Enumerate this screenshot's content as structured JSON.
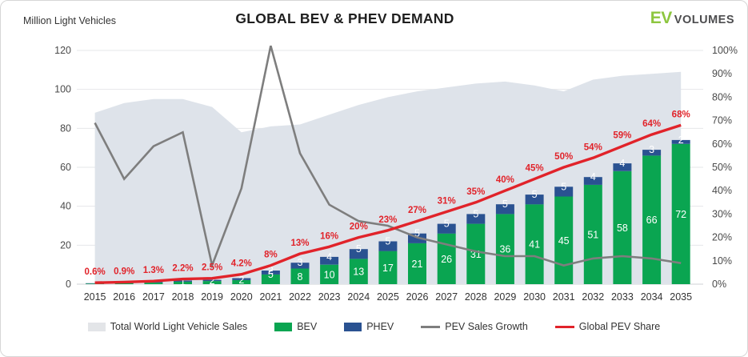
{
  "header": {
    "axis_unit_label": "Million Light Vehicles",
    "title": "GLOBAL BEV & PHEV DEMAND",
    "logo_ev": "EV",
    "logo_volumes": "VOLUMES"
  },
  "colors": {
    "bev_green": "#0aa551",
    "phev_blue": "#2a5291",
    "share_red": "#e1232a",
    "growth_gray": "#7e7e7e",
    "area_fill": "#dee3ea",
    "grid": "#e6e7e9",
    "baseline": "#cfd1d4",
    "axis_text": "#4a4a4a",
    "logo_green": "#8dc63f",
    "legend_area_swatch": "#e3e5e8",
    "bar_label": "#ffffff"
  },
  "chart_data": {
    "type": "bar",
    "subtype": "combo-stacked-bars-area-lines",
    "title": "GLOBAL BEV & PHEV DEMAND",
    "xlabel": "",
    "ylabel_left": "Million Light Vehicles",
    "ylabel_right": "percent",
    "grid": "horizontal",
    "legend_position": "bottom",
    "categories": [
      "2015",
      "2016",
      "2017",
      "2018",
      "2019",
      "2020",
      "2021",
      "2022",
      "2023",
      "2024",
      "2025",
      "2026",
      "2027",
      "2028",
      "2029",
      "2030",
      "2031",
      "2032",
      "2033",
      "2034",
      "2035"
    ],
    "left_axis": {
      "ticks": [
        0,
        20,
        40,
        60,
        80,
        100,
        120
      ],
      "min": 0,
      "max": 120
    },
    "right_axis": {
      "tick_labels": [
        "0%",
        "10%",
        "20%",
        "30%",
        "40%",
        "50%",
        "60%",
        "70%",
        "80%",
        "90%",
        "100%"
      ],
      "min": 0,
      "max": 100
    },
    "series": [
      {
        "name": "Total World Light Vehicle Sales",
        "type": "area",
        "axis": "left",
        "values": [
          88,
          93,
          95,
          95,
          91,
          78,
          81,
          82,
          87,
          92,
          96,
          99,
          101,
          103,
          104,
          102,
          99,
          105,
          107,
          108,
          109
        ]
      },
      {
        "name": "BEV",
        "type": "bar",
        "axis": "left",
        "values": [
          0.3,
          0.5,
          0.8,
          1.3,
          1.6,
          2.1,
          5,
          8,
          10,
          13,
          17,
          21,
          26,
          31,
          36,
          41,
          45,
          51,
          58,
          66,
          72
        ],
        "labels": [
          "",
          "",
          "",
          "1",
          "2",
          "2",
          "5",
          "8",
          "10",
          "13",
          "17",
          "21",
          "26",
          "31",
          "36",
          "41",
          "45",
          "51",
          "58",
          "66",
          "72"
        ]
      },
      {
        "name": "PHEV",
        "type": "bar",
        "axis": "left",
        "stacked_on": "BEV",
        "values": [
          0.2,
          0.3,
          0.4,
          0.6,
          0.6,
          1,
          2,
          3,
          4,
          5,
          5,
          5,
          5,
          5,
          5,
          5,
          5,
          4,
          4,
          3,
          2
        ],
        "labels": [
          "",
          "",
          "",
          "",
          "",
          "",
          "2",
          "3",
          "4",
          "5",
          "5",
          "5",
          "5",
          "5",
          "5",
          "5",
          "5",
          "4",
          "4",
          "3",
          "2"
        ]
      },
      {
        "name": "PEV Sales Growth",
        "type": "line",
        "axis": "right",
        "values": [
          69,
          45,
          59,
          65,
          8,
          41,
          102,
          56,
          34,
          27,
          25,
          20,
          17,
          14,
          12,
          12,
          8,
          11,
          12,
          11,
          9
        ]
      },
      {
        "name": "Global PEV Share",
        "type": "line",
        "axis": "right",
        "values": [
          0.6,
          0.9,
          1.3,
          2.2,
          2.5,
          4.2,
          8,
          13,
          16,
          20,
          23,
          27,
          31,
          35,
          40,
          45,
          50,
          54,
          59,
          64,
          68
        ],
        "point_labels": [
          "0.6%",
          "0.9%",
          "1.3%",
          "2.2%",
          "2.5%",
          "4.2%",
          "8%",
          "13%",
          "16%",
          "20%",
          "23%",
          "27%",
          "31%",
          "35%",
          "40%",
          "45%",
          "50%",
          "54%",
          "59%",
          "64%",
          "68%"
        ]
      }
    ]
  },
  "legend": {
    "items": [
      {
        "label": "Total World Light Vehicle Sales",
        "kind": "box",
        "color": "#e3e5e8"
      },
      {
        "label": "BEV",
        "kind": "box",
        "color": "#0aa551"
      },
      {
        "label": "PHEV",
        "kind": "box",
        "color": "#2a5291"
      },
      {
        "label": "PEV Sales Growth",
        "kind": "line",
        "color": "#7e7e7e"
      },
      {
        "label": "Global PEV Share",
        "kind": "line",
        "color": "#e1232a"
      }
    ]
  }
}
